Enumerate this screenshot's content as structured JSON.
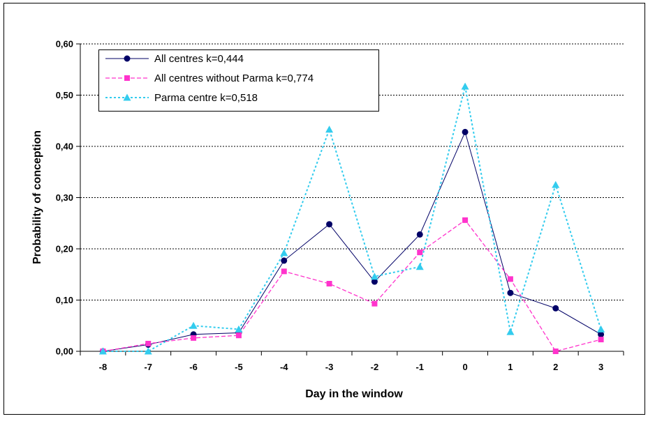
{
  "chart_data": {
    "type": "line",
    "title": "",
    "xlabel": "Day in the window",
    "ylabel": "Probability of conception",
    "categories": [
      "-8",
      "-7",
      "-6",
      "-5",
      "-4",
      "-3",
      "-2",
      "-1",
      "0",
      "1",
      "2",
      "3"
    ],
    "ylim": [
      0,
      0.6
    ],
    "yticks": [
      "0,00",
      "0,10",
      "0,20",
      "0,30",
      "0,40",
      "0,50",
      "0,60"
    ],
    "grid": "horizontal",
    "legend_position": "top-left",
    "series": [
      {
        "name": "All centres k=0,444",
        "color": "#000066",
        "marker": "circle",
        "line": "solid",
        "values": [
          0.0,
          0.013,
          0.033,
          0.036,
          0.177,
          0.248,
          0.136,
          0.228,
          0.428,
          0.114,
          0.084,
          0.033
        ]
      },
      {
        "name": "All centres without Parma k=0,774",
        "color": "#ff33cc",
        "marker": "square",
        "line": "dashed",
        "values": [
          0.0,
          0.015,
          0.026,
          0.031,
          0.156,
          0.132,
          0.093,
          0.193,
          0.256,
          0.141,
          0.0,
          0.023
        ]
      },
      {
        "name": "Parma centre k=0,518",
        "color": "#33ccee",
        "marker": "triangle",
        "line": "dotted",
        "values": [
          0.0,
          0.0,
          0.05,
          0.043,
          0.192,
          0.433,
          0.146,
          0.165,
          0.517,
          0.038,
          0.325,
          0.043
        ]
      }
    ]
  }
}
